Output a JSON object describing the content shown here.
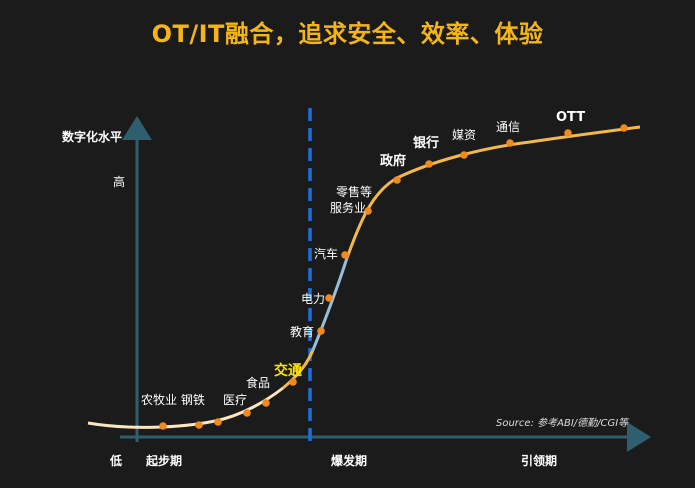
{
  "title": "OT/IT融合，追求安全、效率、体验",
  "y_axis": {
    "label": "数字化水平",
    "high": "高",
    "low": "低"
  },
  "phases": [
    "起步期",
    "爆发期",
    "引领期"
  ],
  "industries": [
    {
      "label": "农牧业 钢铁"
    },
    {
      "label": "医疗"
    },
    {
      "label": "食品"
    },
    {
      "label": "交通"
    },
    {
      "label": "教育"
    },
    {
      "label": "电力"
    },
    {
      "label": "汽车"
    },
    {
      "label": "零售等"
    },
    {
      "label": "服务业"
    },
    {
      "label": "政府"
    },
    {
      "label": "银行"
    },
    {
      "label": "媒资"
    },
    {
      "label": "通信"
    },
    {
      "label": "OTT"
    }
  ],
  "source": "Source: 参考ABI/德勤/CGI等",
  "colors": {
    "title": "#f5b514",
    "axis": "#2f5f6e",
    "divider": "#1e6fd6",
    "curve_low": "#fbe6c0",
    "curve_mid": "#f2b84a",
    "curve_steep": "#9bbcd8",
    "marker": "#f08a1c",
    "highlight": "#ffe400"
  }
}
